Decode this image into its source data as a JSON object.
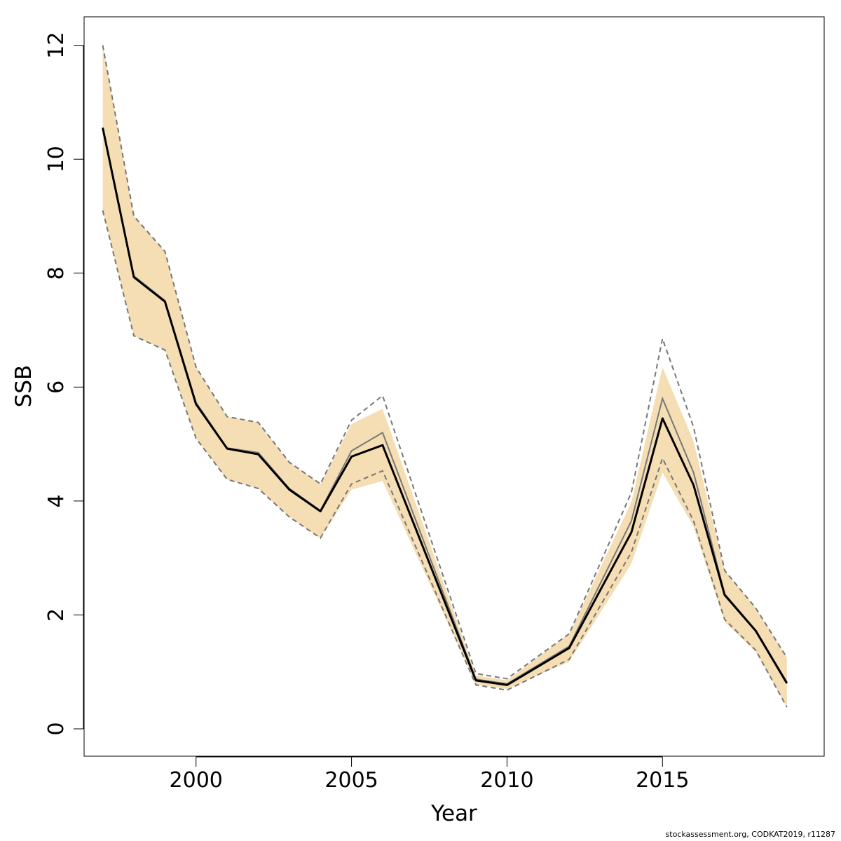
{
  "chart_data": {
    "type": "line",
    "xlabel": "Year",
    "ylabel": "SSB",
    "xlim": [
      1996.4,
      2020.2
    ],
    "ylim": [
      -0.48,
      12.5
    ],
    "xticks": [
      2000,
      2005,
      2010,
      2015
    ],
    "yticks": [
      0,
      2,
      4,
      6,
      8,
      10,
      12
    ],
    "grid": false,
    "x": [
      1997,
      1998,
      1999,
      2000,
      2001,
      2002,
      2003,
      2004,
      2005,
      2006,
      2009,
      2010,
      2012,
      2014,
      2015,
      2016,
      2017,
      2018,
      2019
    ],
    "series": [
      {
        "role": "estimate",
        "values": [
          10.55,
          7.93,
          7.5,
          5.7,
          4.92,
          4.82,
          4.2,
          3.82,
          4.78,
          4.98,
          0.85,
          0.77,
          1.42,
          3.45,
          5.45,
          4.28,
          2.35,
          1.72,
          0.8
        ],
        "color": "#000000"
      },
      {
        "role": "previous-estimate",
        "values": [
          10.56,
          7.95,
          7.52,
          5.73,
          4.93,
          4.85,
          4.22,
          3.83,
          4.88,
          5.2,
          0.87,
          0.79,
          1.45,
          3.65,
          5.8,
          4.5,
          2.37,
          1.73,
          0.82
        ],
        "color": "#777777"
      },
      {
        "role": "confidence-band",
        "lower": [
          9.1,
          6.9,
          6.65,
          5.1,
          4.38,
          4.22,
          3.72,
          3.35,
          4.2,
          4.35,
          0.78,
          0.7,
          1.18,
          2.9,
          4.5,
          3.55,
          1.88,
          1.35,
          0.38
        ],
        "upper": [
          12.0,
          9.0,
          8.38,
          6.35,
          5.48,
          5.38,
          4.68,
          4.3,
          5.35,
          5.62,
          0.94,
          0.85,
          1.67,
          3.98,
          6.35,
          5.05,
          2.78,
          2.12,
          1.25
        ],
        "color": "#f5deb3"
      },
      {
        "role": "previous-band",
        "lower": [
          9.1,
          6.9,
          6.65,
          5.1,
          4.38,
          4.22,
          3.72,
          3.35,
          4.3,
          4.53,
          0.77,
          0.68,
          1.22,
          3.1,
          4.75,
          3.65,
          1.92,
          1.38,
          0.38
        ],
        "upper": [
          12.0,
          9.0,
          8.38,
          6.35,
          5.48,
          5.38,
          4.68,
          4.3,
          5.42,
          5.85,
          0.97,
          0.88,
          1.67,
          4.15,
          6.85,
          5.3,
          2.78,
          2.12,
          1.25
        ],
        "color": "#777777"
      }
    ]
  },
  "footnote": "stockassessment.org, CODKAT2019, r11287"
}
